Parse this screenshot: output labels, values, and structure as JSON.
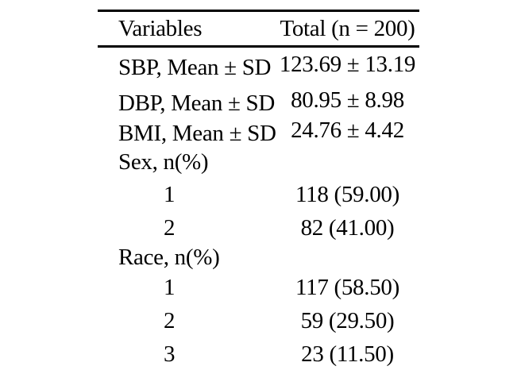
{
  "table": {
    "header": {
      "variables_label": "Variables",
      "total_label": "Total (n = 200)"
    },
    "rows": [
      {
        "label": "SBP, Mean ± SD",
        "value": "123.69 ± 13.19",
        "indent": false
      },
      {
        "label": "DBP, Mean ± SD",
        "value": "80.95 ± 8.98",
        "indent": false
      },
      {
        "label": "BMI, Mean ± SD",
        "value": "24.76 ± 4.42",
        "indent": false
      },
      {
        "label": "Sex, n(%)",
        "value": "",
        "indent": false
      },
      {
        "label": "1",
        "value": "118 (59.00)",
        "indent": true
      },
      {
        "label": "2",
        "value": "82 (41.00)",
        "indent": true
      },
      {
        "label": "Race, n(%)",
        "value": "",
        "indent": false
      },
      {
        "label": "1",
        "value": "117 (58.50)",
        "indent": true
      },
      {
        "label": "2",
        "value": "59 (29.50)",
        "indent": true
      },
      {
        "label": "3",
        "value": "23 (11.50)",
        "indent": true
      }
    ],
    "colors": {
      "text": "#000000",
      "rule": "#000000",
      "background": "#ffffff"
    }
  }
}
